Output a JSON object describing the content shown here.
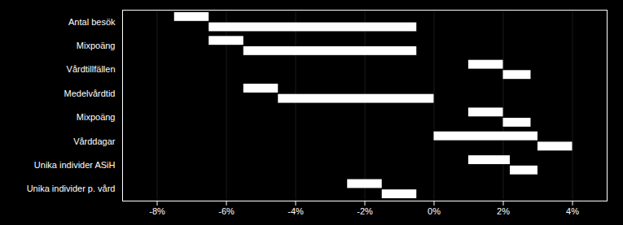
{
  "chart_data": {
    "type": "bar",
    "orientation": "horizontal",
    "categories": [
      "Antal besök",
      "Mixpoäng",
      "Vårdtillfällen",
      "Medelvårdtid",
      "Mixpoäng",
      "Vårddagar",
      "Unika individer ASiH",
      "Unika individer p. vård"
    ],
    "series": [
      {
        "left": [
          -7.5,
          -6.5,
          1.0,
          -5.5,
          1.0,
          0.0,
          1.0,
          -2.5
        ],
        "width": [
          1.0,
          1.0,
          1.0,
          1.0,
          1.0,
          3.0,
          1.2,
          1.0
        ]
      },
      {
        "left": [
          -6.5,
          -5.5,
          2.0,
          -4.5,
          2.0,
          3.0,
          2.2,
          -1.5
        ],
        "width": [
          6.0,
          5.0,
          0.8,
          4.5,
          0.8,
          1.0,
          0.8,
          1.0
        ]
      }
    ],
    "color": "#ffffff",
    "xlim": [
      -9,
      5
    ],
    "xticks": [
      {
        "value": -8,
        "label": "-8%"
      },
      {
        "value": -6,
        "label": "-6%"
      },
      {
        "value": -4,
        "label": "-4%"
      },
      {
        "value": -2,
        "label": "-2%"
      },
      {
        "value": 0,
        "label": "0%"
      },
      {
        "value": 2,
        "label": "2%"
      },
      {
        "value": 4,
        "label": "4%"
      }
    ],
    "grid": true
  }
}
